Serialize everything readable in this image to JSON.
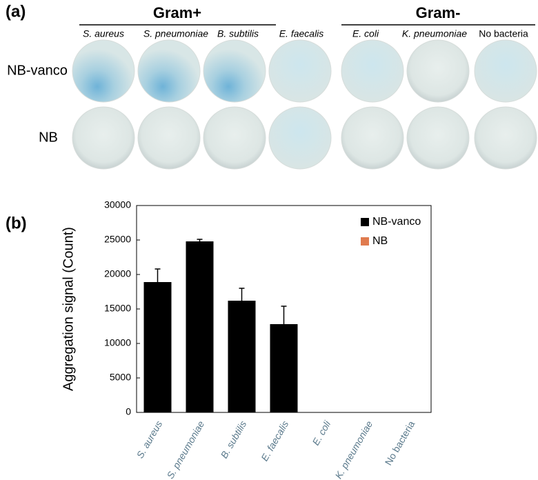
{
  "panel_a": {
    "label": "(a)",
    "groups": [
      {
        "title": "Gram+"
      },
      {
        "title": "Gram-"
      }
    ],
    "columns": [
      "S. aureus",
      "S. pneumoniae",
      "B. subtilis",
      "E. faecalis",
      "E. coli",
      "K. pneumoniae",
      "No bacteria"
    ],
    "rows": [
      "NB-vanco",
      "NB"
    ]
  },
  "panel_b": {
    "label": "(b)"
  },
  "chart_data": {
    "type": "bar",
    "y_label": "Aggregation signal (Count)",
    "categories": [
      "S. aureus",
      "S. pneumoniae",
      "B. subtilis",
      "E. faecalis",
      "E. coli",
      "K. pneumoniae",
      "No bacteria"
    ],
    "series": [
      {
        "name": "NB-vanco",
        "color": "#000000",
        "values": [
          18900,
          24800,
          16200,
          12800,
          0,
          0,
          0
        ],
        "errors": [
          1900,
          300,
          1800,
          2600,
          0,
          0,
          0
        ]
      },
      {
        "name": "NB",
        "color": "#e07b4f",
        "values": [
          0,
          0,
          0,
          0,
          0,
          0,
          0
        ],
        "errors": [
          0,
          0,
          0,
          0,
          0,
          0,
          0
        ]
      }
    ],
    "ylim": [
      0,
      30000
    ],
    "yticks": [
      0,
      5000,
      10000,
      15000,
      20000,
      25000,
      30000
    ],
    "legend": "upper right"
  }
}
